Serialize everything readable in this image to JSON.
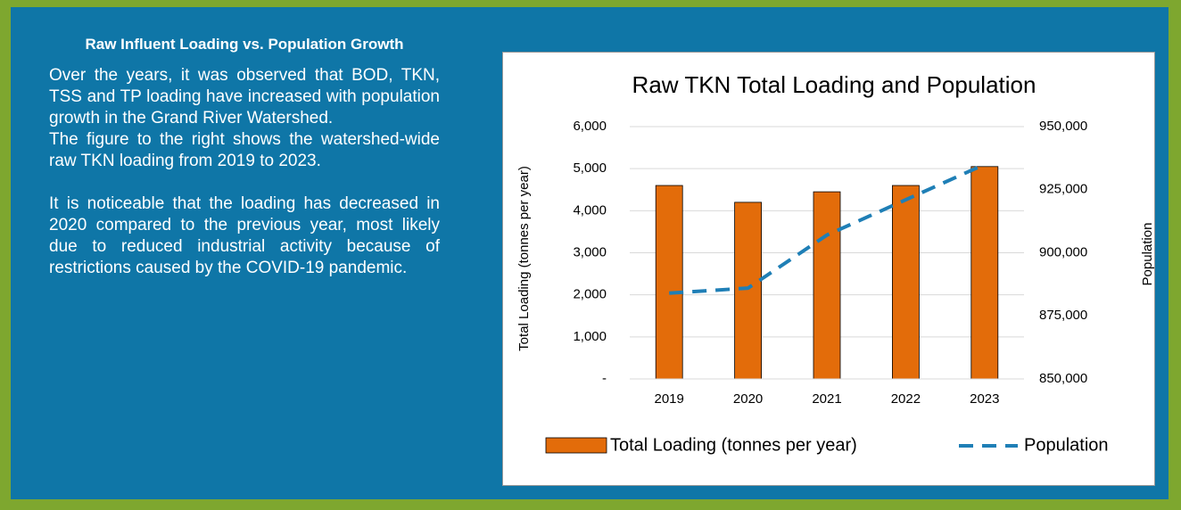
{
  "panel": {
    "title": "Raw Influent Loading vs. Population Growth",
    "paragraphs": [
      "Over the years, it was observed that BOD, TKN, TSS and TP loading have increased with population growth in the Grand River Watershed.",
      "The figure to the right shows the watershed-wide raw TKN loading from 2019 to 2023.",
      "It is noticeable that the loading has decreased in 2020 compared to the previous year, most likely due to reduced industrial activity because of restrictions caused by the COVID-19 pandemic."
    ]
  },
  "chart_data": {
    "type": "bar",
    "title": "Raw TKN Total Loading and Population",
    "ylabel": "Total Loading (tonnes per year)",
    "y2label": "Population",
    "categories": [
      "2019",
      "2020",
      "2021",
      "2022",
      "2023"
    ],
    "series": [
      {
        "name": "Total Loading (tonnes per year)",
        "type": "bar",
        "color": "#e36c0a",
        "values": [
          4600,
          4200,
          4450,
          4600,
          5050
        ]
      },
      {
        "name": "Population",
        "type": "line",
        "dashed": true,
        "axis": "y2",
        "color": "#1f7fb6",
        "values": [
          884000,
          886000,
          907000,
          921000,
          935000
        ]
      }
    ],
    "ylim": [
      0,
      6000
    ],
    "yticks": [
      {
        "value": 0,
        "label": "-"
      },
      {
        "value": 1000,
        "label": "1,000"
      },
      {
        "value": 2000,
        "label": "2,000"
      },
      {
        "value": 3000,
        "label": "3,000"
      },
      {
        "value": 4000,
        "label": "4,000"
      },
      {
        "value": 5000,
        "label": "5,000"
      },
      {
        "value": 6000,
        "label": "6,000"
      }
    ],
    "y2lim": [
      850000,
      950000
    ],
    "y2ticks": [
      {
        "value": 850000,
        "label": "850,000"
      },
      {
        "value": 875000,
        "label": "875,000"
      },
      {
        "value": 900000,
        "label": "900,000"
      },
      {
        "value": 925000,
        "label": "925,000"
      },
      {
        "value": 950000,
        "label": "950,000"
      }
    ],
    "grid": true,
    "legend": "bottom"
  }
}
